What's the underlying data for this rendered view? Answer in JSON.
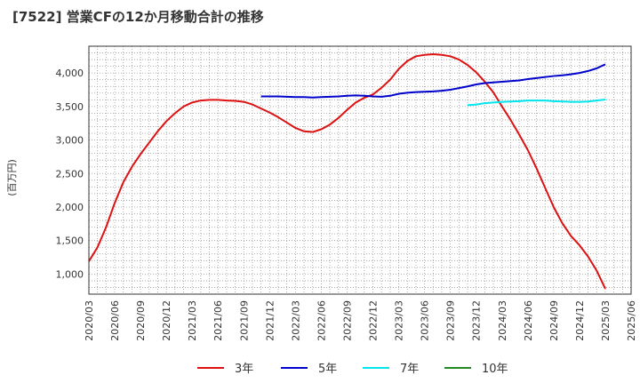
{
  "chart_data": {
    "type": "line",
    "title": "[7522]  営業CFの12か月移動合計の推移",
    "ylabel": "(百万円)",
    "ylim": [
      700,
      4400
    ],
    "yticks": [
      1000,
      1500,
      2000,
      2500,
      3000,
      3500,
      4000
    ],
    "ytick_labels": [
      "1,000",
      "1,500",
      "2,000",
      "2,500",
      "3,000",
      "3,500",
      "4,000"
    ],
    "xticks": [
      "2020/03",
      "2020/06",
      "2020/09",
      "2020/12",
      "2021/03",
      "2021/06",
      "2021/09",
      "2021/12",
      "2022/03",
      "2022/06",
      "2022/09",
      "2022/12",
      "2023/03",
      "2023/06",
      "2023/09",
      "2023/12",
      "2024/03",
      "2024/06",
      "2024/09",
      "2024/12",
      "2025/03",
      "2025/06"
    ],
    "grid": true,
    "legend_position": "bottom",
    "series": [
      {
        "name": "3年",
        "color": "#dd1111",
        "points": [
          [
            "2020/03",
            1190
          ],
          [
            "2020/04",
            1400
          ],
          [
            "2020/05",
            1700
          ],
          [
            "2020/06",
            2060
          ],
          [
            "2020/07",
            2370
          ],
          [
            "2020/08",
            2600
          ],
          [
            "2020/09",
            2790
          ],
          [
            "2020/10",
            2960
          ],
          [
            "2020/11",
            3130
          ],
          [
            "2020/12",
            3280
          ],
          [
            "2021/01",
            3400
          ],
          [
            "2021/02",
            3500
          ],
          [
            "2021/03",
            3560
          ],
          [
            "2021/04",
            3590
          ],
          [
            "2021/05",
            3600
          ],
          [
            "2021/06",
            3600
          ],
          [
            "2021/07",
            3590
          ],
          [
            "2021/08",
            3585
          ],
          [
            "2021/09",
            3570
          ],
          [
            "2021/10",
            3530
          ],
          [
            "2021/11",
            3470
          ],
          [
            "2021/12",
            3410
          ],
          [
            "2022/01",
            3340
          ],
          [
            "2022/02",
            3260
          ],
          [
            "2022/03",
            3180
          ],
          [
            "2022/04",
            3130
          ],
          [
            "2022/05",
            3120
          ],
          [
            "2022/06",
            3160
          ],
          [
            "2022/07",
            3230
          ],
          [
            "2022/08",
            3330
          ],
          [
            "2022/09",
            3450
          ],
          [
            "2022/10",
            3560
          ],
          [
            "2022/11",
            3630
          ],
          [
            "2022/12",
            3680
          ],
          [
            "2023/01",
            3780
          ],
          [
            "2023/02",
            3900
          ],
          [
            "2023/03",
            4060
          ],
          [
            "2023/04",
            4180
          ],
          [
            "2023/05",
            4250
          ],
          [
            "2023/06",
            4270
          ],
          [
            "2023/07",
            4280
          ],
          [
            "2023/08",
            4270
          ],
          [
            "2023/09",
            4250
          ],
          [
            "2023/10",
            4200
          ],
          [
            "2023/11",
            4120
          ],
          [
            "2023/12",
            4010
          ],
          [
            "2024/01",
            3870
          ],
          [
            "2024/02",
            3710
          ],
          [
            "2024/03",
            3500
          ],
          [
            "2024/04",
            3300
          ],
          [
            "2024/05",
            3080
          ],
          [
            "2024/06",
            2850
          ],
          [
            "2024/07",
            2580
          ],
          [
            "2024/08",
            2290
          ],
          [
            "2024/09",
            2000
          ],
          [
            "2024/10",
            1760
          ],
          [
            "2024/11",
            1570
          ],
          [
            "2024/12",
            1430
          ],
          [
            "2025/01",
            1260
          ],
          [
            "2025/02",
            1050
          ],
          [
            "2025/03",
            780
          ]
        ]
      },
      {
        "name": "5年",
        "color": "#0000cc",
        "points": [
          [
            "2021/11",
            3650
          ],
          [
            "2021/12",
            3650
          ],
          [
            "2022/01",
            3650
          ],
          [
            "2022/02",
            3645
          ],
          [
            "2022/03",
            3640
          ],
          [
            "2022/04",
            3640
          ],
          [
            "2022/05",
            3635
          ],
          [
            "2022/06",
            3640
          ],
          [
            "2022/07",
            3645
          ],
          [
            "2022/08",
            3650
          ],
          [
            "2022/09",
            3660
          ],
          [
            "2022/10",
            3665
          ],
          [
            "2022/11",
            3660
          ],
          [
            "2022/12",
            3650
          ],
          [
            "2023/01",
            3645
          ],
          [
            "2023/02",
            3660
          ],
          [
            "2023/03",
            3690
          ],
          [
            "2023/04",
            3705
          ],
          [
            "2023/05",
            3715
          ],
          [
            "2023/06",
            3720
          ],
          [
            "2023/07",
            3725
          ],
          [
            "2023/08",
            3735
          ],
          [
            "2023/09",
            3750
          ],
          [
            "2023/10",
            3775
          ],
          [
            "2023/11",
            3800
          ],
          [
            "2023/12",
            3830
          ],
          [
            "2024/01",
            3850
          ],
          [
            "2024/02",
            3860
          ],
          [
            "2024/03",
            3870
          ],
          [
            "2024/04",
            3880
          ],
          [
            "2024/05",
            3890
          ],
          [
            "2024/06",
            3910
          ],
          [
            "2024/07",
            3925
          ],
          [
            "2024/08",
            3940
          ],
          [
            "2024/09",
            3955
          ],
          [
            "2024/10",
            3965
          ],
          [
            "2024/11",
            3980
          ],
          [
            "2024/12",
            4000
          ],
          [
            "2025/01",
            4030
          ],
          [
            "2025/02",
            4070
          ],
          [
            "2025/03",
            4130
          ]
        ]
      },
      {
        "name": "7年",
        "color": "#00e5ee",
        "points": [
          [
            "2023/11",
            3520
          ],
          [
            "2023/12",
            3530
          ],
          [
            "2024/01",
            3550
          ],
          [
            "2024/02",
            3560
          ],
          [
            "2024/03",
            3570
          ],
          [
            "2024/04",
            3575
          ],
          [
            "2024/05",
            3580
          ],
          [
            "2024/06",
            3590
          ],
          [
            "2024/07",
            3590
          ],
          [
            "2024/08",
            3590
          ],
          [
            "2024/09",
            3580
          ],
          [
            "2024/10",
            3575
          ],
          [
            "2024/11",
            3570
          ],
          [
            "2024/12",
            3570
          ],
          [
            "2025/01",
            3575
          ],
          [
            "2025/02",
            3590
          ],
          [
            "2025/03",
            3605
          ]
        ]
      },
      {
        "name": "10年",
        "color": "#228822",
        "points": []
      }
    ]
  }
}
